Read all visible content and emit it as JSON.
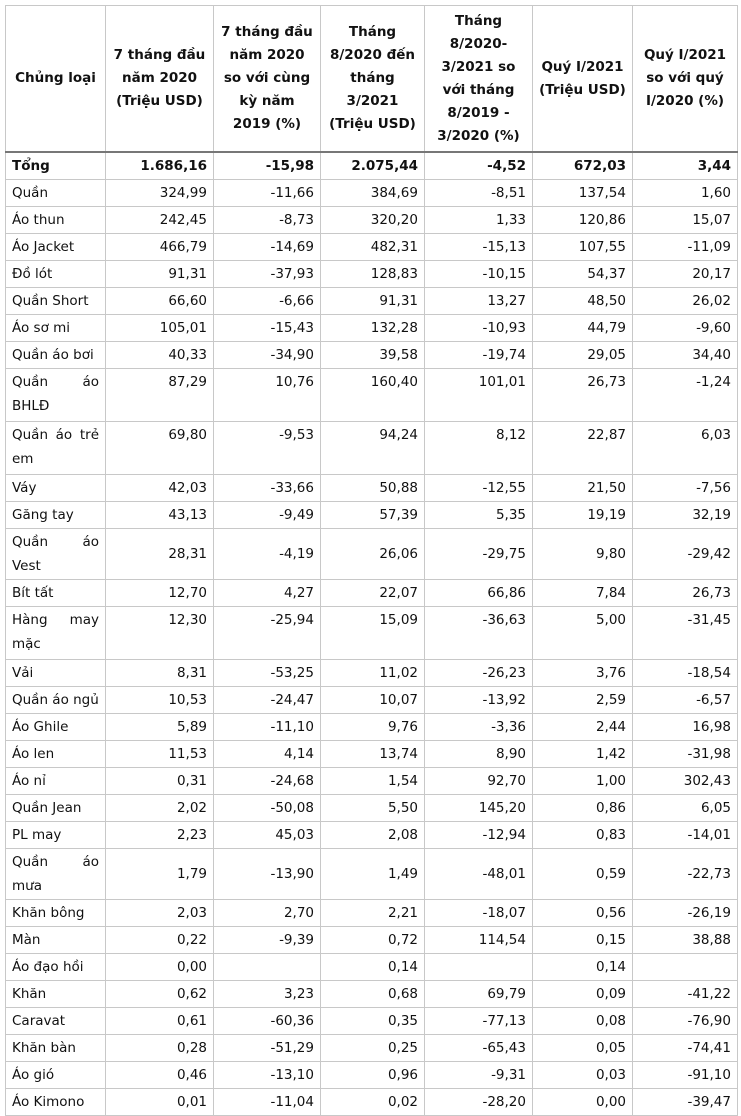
{
  "table": {
    "header": [
      "Chủng loại",
      "7 tháng đầu năm 2020 (Triệu USD)",
      "7 tháng đầu năm 2020 so với cùng kỳ năm 2019 (%)",
      "Tháng 8/2020 đến tháng 3/2021 (Triệu USD)",
      "Tháng 8/2020-3/2021 so với tháng 8/2019 - 3/2020 (%)",
      "Quý I/2021 (Triệu USD)",
      "Quý I/2021 so với quý I/2020 (%)"
    ],
    "rows": [
      [
        "Tổng",
        "1.686,16",
        "-15,98",
        "2.075,44",
        "-4,52",
        "672,03",
        "3,44"
      ],
      [
        "Quần",
        "324,99",
        "-11,66",
        "384,69",
        "-8,51",
        "137,54",
        "1,60"
      ],
      [
        "Áo thun",
        "242,45",
        "-8,73",
        "320,20",
        "1,33",
        "120,86",
        "15,07"
      ],
      [
        "Áo Jacket",
        "466,79",
        "-14,69",
        "482,31",
        "-15,13",
        "107,55",
        "-11,09"
      ],
      [
        "Đồ lót",
        "91,31",
        "-37,93",
        "128,83",
        "-10,15",
        "54,37",
        "20,17"
      ],
      [
        "Quần Short",
        "66,60",
        "-6,66",
        "91,31",
        "13,27",
        "48,50",
        "26,02"
      ],
      [
        "Áo sơ mi",
        "105,01",
        "-15,43",
        "132,28",
        "-10,93",
        "44,79",
        "-9,60"
      ],
      [
        "Quần áo bơi",
        "40,33",
        "-34,90",
        "39,58",
        "-19,74",
        "29,05",
        "34,40"
      ],
      [
        "Quần áo BHLĐ",
        "87,29",
        "10,76",
        "160,40",
        "101,01",
        "26,73",
        "-1,24"
      ],
      [
        "Quần áo trẻ em",
        "69,80",
        "-9,53",
        "94,24",
        "8,12",
        "22,87",
        "6,03"
      ],
      [
        "Váy",
        "42,03",
        "-33,66",
        "50,88",
        "-12,55",
        "21,50",
        "-7,56"
      ],
      [
        "Găng tay",
        "43,13",
        "-9,49",
        "57,39",
        "5,35",
        "19,19",
        "32,19"
      ],
      [
        "Quần áo Vest",
        "28,31",
        "-4,19",
        "26,06",
        "-29,75",
        "9,80",
        "-29,42"
      ],
      [
        "Bít tất",
        "12,70",
        "4,27",
        "22,07",
        "66,86",
        "7,84",
        "26,73"
      ],
      [
        "Hàng may mặc",
        "12,30",
        "-25,94",
        "15,09",
        "-36,63",
        "5,00",
        "-31,45"
      ],
      [
        "Vải",
        "8,31",
        "-53,25",
        "11,02",
        "-26,23",
        "3,76",
        "-18,54"
      ],
      [
        "Quần áo ngủ",
        "10,53",
        "-24,47",
        "10,07",
        "-13,92",
        "2,59",
        "-6,57"
      ],
      [
        "Áo Ghile",
        "5,89",
        "-11,10",
        "9,76",
        "-3,36",
        "2,44",
        "16,98"
      ],
      [
        "Áo len",
        "11,53",
        "4,14",
        "13,74",
        "8,90",
        "1,42",
        "-31,98"
      ],
      [
        "Áo nỉ",
        "0,31",
        "-24,68",
        "1,54",
        "92,70",
        "1,00",
        "302,43"
      ],
      [
        "Quần Jean",
        "2,02",
        "-50,08",
        "5,50",
        "145,20",
        "0,86",
        "6,05"
      ],
      [
        "PL may",
        "2,23",
        "45,03",
        "2,08",
        "-12,94",
        "0,83",
        "-14,01"
      ],
      [
        "Quần áo mưa",
        "1,79",
        "-13,90",
        "1,49",
        "-48,01",
        "0,59",
        "-22,73"
      ],
      [
        "Khăn bông",
        "2,03",
        "2,70",
        "2,21",
        "-18,07",
        "0,56",
        "-26,19"
      ],
      [
        "Màn",
        "0,22",
        "-9,39",
        "0,72",
        "114,54",
        "0,15",
        "38,88"
      ],
      [
        "Áo đạo hồi",
        "0,00",
        null,
        "0,14",
        null,
        "0,14",
        null
      ],
      [
        "Khăn",
        "0,62",
        "3,23",
        "0,68",
        "69,79",
        "0,09",
        "-41,22"
      ],
      [
        "Caravat",
        "0,61",
        "-60,36",
        "0,35",
        "-77,13",
        "0,08",
        "-76,90"
      ],
      [
        "Khăn bàn",
        "0,28",
        "-51,29",
        "0,25",
        "-65,43",
        "0,05",
        "-74,41"
      ],
      [
        "Áo gió",
        "0,46",
        "-13,10",
        "0,96",
        "-9,31",
        "0,03",
        "-91,10"
      ],
      [
        "Áo Kimono",
        "0,01",
        "-11,04",
        "0,02",
        "-28,20",
        "0,00",
        "-39,47"
      ]
    ]
  }
}
